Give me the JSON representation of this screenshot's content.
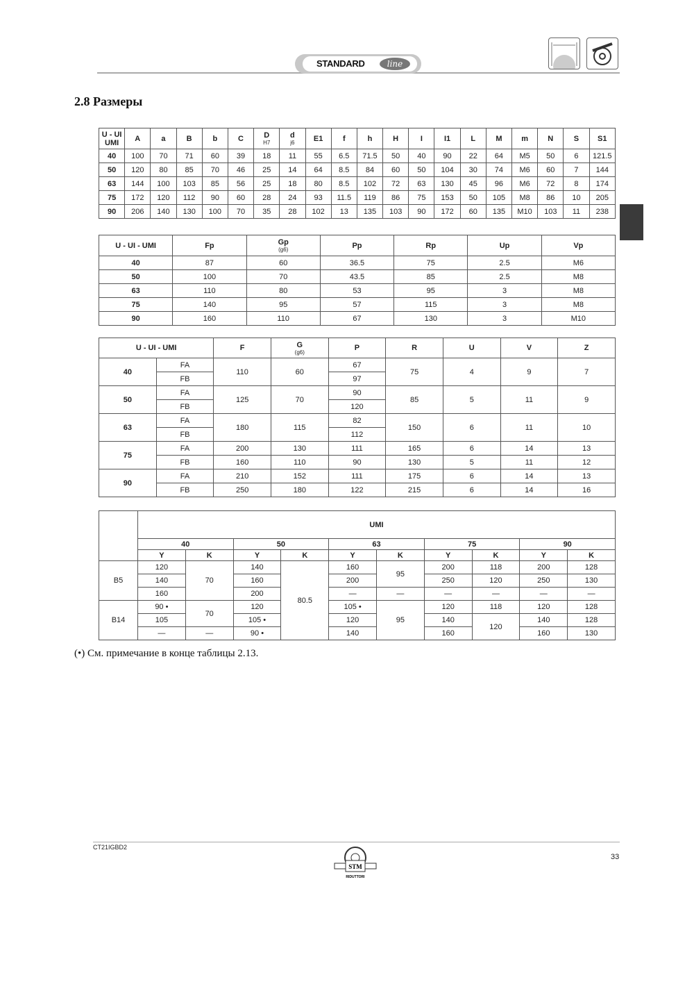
{
  "header": {
    "badge_text": "STANDARD",
    "badge_logo": "line",
    "icons": [
      "shaft-dimension-icon",
      "worm-gear-icon"
    ]
  },
  "section_title": "2.8 Размеры",
  "table1": {
    "headers": [
      {
        "t": "U - UI UMI"
      },
      {
        "t": "A"
      },
      {
        "t": "a"
      },
      {
        "t": "B"
      },
      {
        "t": "b"
      },
      {
        "t": "C"
      },
      {
        "t": "D",
        "s": "H7"
      },
      {
        "t": "d",
        "s": "j6"
      },
      {
        "t": "E1"
      },
      {
        "t": "f"
      },
      {
        "t": "h"
      },
      {
        "t": "H"
      },
      {
        "t": "I"
      },
      {
        "t": "I1"
      },
      {
        "t": "L"
      },
      {
        "t": "M"
      },
      {
        "t": "m"
      },
      {
        "t": "N"
      },
      {
        "t": "S"
      },
      {
        "t": "S1"
      }
    ],
    "rows": [
      [
        "40",
        "100",
        "70",
        "71",
        "60",
        "39",
        "18",
        "11",
        "55",
        "6.5",
        "71.5",
        "50",
        "40",
        "90",
        "22",
        "64",
        "M5",
        "50",
        "6",
        "121.5"
      ],
      [
        "50",
        "120",
        "80",
        "85",
        "70",
        "46",
        "25",
        "14",
        "64",
        "8.5",
        "84",
        "60",
        "50",
        "104",
        "30",
        "74",
        "M6",
        "60",
        "7",
        "144"
      ],
      [
        "63",
        "144",
        "100",
        "103",
        "85",
        "56",
        "25",
        "18",
        "80",
        "8.5",
        "102",
        "72",
        "63",
        "130",
        "45",
        "96",
        "M6",
        "72",
        "8",
        "174"
      ],
      [
        "75",
        "172",
        "120",
        "112",
        "90",
        "60",
        "28",
        "24",
        "93",
        "11.5",
        "119",
        "86",
        "75",
        "153",
        "50",
        "105",
        "M8",
        "86",
        "10",
        "205"
      ],
      [
        "90",
        "206",
        "140",
        "130",
        "100",
        "70",
        "35",
        "28",
        "102",
        "13",
        "135",
        "103",
        "90",
        "172",
        "60",
        "135",
        "M10",
        "103",
        "11",
        "238"
      ]
    ]
  },
  "table2": {
    "headers": [
      {
        "t": "U - UI - UMI"
      },
      {
        "t": "Fp"
      },
      {
        "t": "Gp",
        "s": "(g6)"
      },
      {
        "t": "Pp"
      },
      {
        "t": "Rp"
      },
      {
        "t": "Up"
      },
      {
        "t": "Vp"
      }
    ],
    "rows": [
      [
        "40",
        "87",
        "60",
        "36.5",
        "75",
        "2.5",
        "M6"
      ],
      [
        "50",
        "100",
        "70",
        "43.5",
        "85",
        "2.5",
        "M8"
      ],
      [
        "63",
        "110",
        "80",
        "53",
        "95",
        "3",
        "M8"
      ],
      [
        "75",
        "140",
        "95",
        "57",
        "115",
        "3",
        "M8"
      ],
      [
        "90",
        "160",
        "110",
        "67",
        "130",
        "3",
        "M10"
      ]
    ]
  },
  "table3": {
    "headers": [
      {
        "t": "U - UI - UMI"
      },
      {
        "t": "F"
      },
      {
        "t": "G",
        "s": "(g6)"
      },
      {
        "t": "P"
      },
      {
        "t": "R"
      },
      {
        "t": "U"
      },
      {
        "t": "V"
      },
      {
        "t": "Z"
      }
    ],
    "groups": [
      {
        "size": "40",
        "merged": true,
        "types": [
          "FA",
          "FB"
        ],
        "F": "110",
        "G": "60",
        "P": [
          "67",
          "97"
        ],
        "R": "75",
        "U": "4",
        "V": "9",
        "Z": "7"
      },
      {
        "size": "50",
        "merged": true,
        "types": [
          "FA",
          "FB"
        ],
        "F": "125",
        "G": "70",
        "P": [
          "90",
          "120"
        ],
        "R": "85",
        "U": "5",
        "V": "11",
        "Z": "9"
      },
      {
        "size": "63",
        "merged": true,
        "types": [
          "FA",
          "FB"
        ],
        "F": "180",
        "G": "115",
        "P": [
          "82",
          "112"
        ],
        "R": "150",
        "U": "6",
        "V": "11",
        "Z": "10"
      },
      {
        "size": "75",
        "merged": false,
        "rows": [
          [
            "FA",
            "200",
            "130",
            "111",
            "165",
            "6",
            "14",
            "13"
          ],
          [
            "FB",
            "160",
            "110",
            "90",
            "130",
            "5",
            "11",
            "12"
          ]
        ]
      },
      {
        "size": "90",
        "merged": false,
        "rows": [
          [
            "FA",
            "210",
            "152",
            "111",
            "175",
            "6",
            "14",
            "13"
          ],
          [
            "FB",
            "250",
            "180",
            "122",
            "215",
            "6",
            "14",
            "16"
          ]
        ]
      }
    ]
  },
  "table4": {
    "title": "UMI",
    "sizes": [
      "40",
      "50",
      "63",
      "75",
      "90"
    ],
    "subheaders": [
      "Y",
      "K"
    ],
    "rows": [
      [
        "B5",
        "120",
        "70",
        "140",
        "80.5",
        "160",
        "95",
        "200",
        "118",
        "200",
        "128"
      ],
      [
        "140",
        "160",
        "200",
        "250",
        "120",
        "250",
        "130"
      ],
      [
        "160",
        "200",
        "—",
        "—",
        "—",
        "—",
        "—",
        "—"
      ],
      [
        "B14",
        "90 •",
        "70",
        "120",
        "105 •",
        "95",
        "120",
        "118",
        "120",
        "128"
      ],
      [
        "105",
        "105 •",
        "120",
        "140",
        "120",
        "140",
        "128"
      ],
      [
        "—",
        "—",
        "90 •",
        "140",
        "160",
        "160",
        "130"
      ]
    ]
  },
  "footnote": "(•) См. примечание в конце таблицы 2.13.",
  "footer": {
    "code": "CT21IGBD2",
    "page": "33",
    "logo_text": "STM",
    "logo_sub": "RIDUTTORI"
  }
}
